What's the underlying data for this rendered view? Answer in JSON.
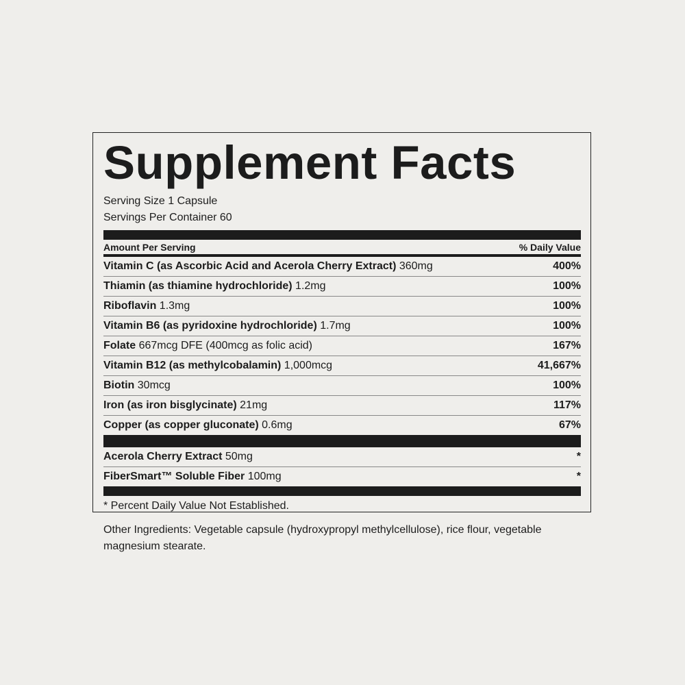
{
  "label": {
    "title": "Supplement Facts",
    "serving_size": "Serving Size 1 Capsule",
    "servings_per_container": "Servings Per Container 60",
    "header": {
      "left": "Amount Per Serving",
      "right": "% Daily Value"
    },
    "rows": [
      {
        "name": "Vitamin C (as Ascorbic Acid and Acerola Cherry Extract)",
        "amount": "360mg",
        "dv": "400%"
      },
      {
        "name": "Thiamin (as thiamine hydrochloride)",
        "amount": "1.2mg",
        "dv": "100%"
      },
      {
        "name": "Riboflavin",
        "amount": "1.3mg",
        "dv": "100%"
      },
      {
        "name": "Vitamin B6 (as pyridoxine hydrochloride)",
        "amount": "1.7mg",
        "dv": "100%"
      },
      {
        "name": "Folate",
        "amount": "667mcg DFE (400mcg as folic acid)",
        "dv": "167%"
      },
      {
        "name": "Vitamin B12 (as methylcobalamin)",
        "amount": "1,000mcg",
        "dv": "41,667%"
      },
      {
        "name": "Biotin",
        "amount": "30mcg",
        "dv": "100%"
      },
      {
        "name": "Iron (as iron bisglycinate)",
        "amount": "21mg",
        "dv": "117%"
      },
      {
        "name": "Copper (as copper gluconate)",
        "amount": "0.6mg",
        "dv": "67%"
      }
    ],
    "other_rows": [
      {
        "name": "Acerola Cherry Extract",
        "amount": "50mg",
        "dv": "*"
      },
      {
        "name": "FiberSmart™ Soluble Fiber",
        "amount": "100mg",
        "dv": "*"
      }
    ],
    "footnote": "* Percent Daily Value Not Established."
  },
  "other_ingredients": "Other Ingredients: Vegetable capsule (hydroxypropyl methylcellulose), rice flour, vegetable magnesium stearate."
}
